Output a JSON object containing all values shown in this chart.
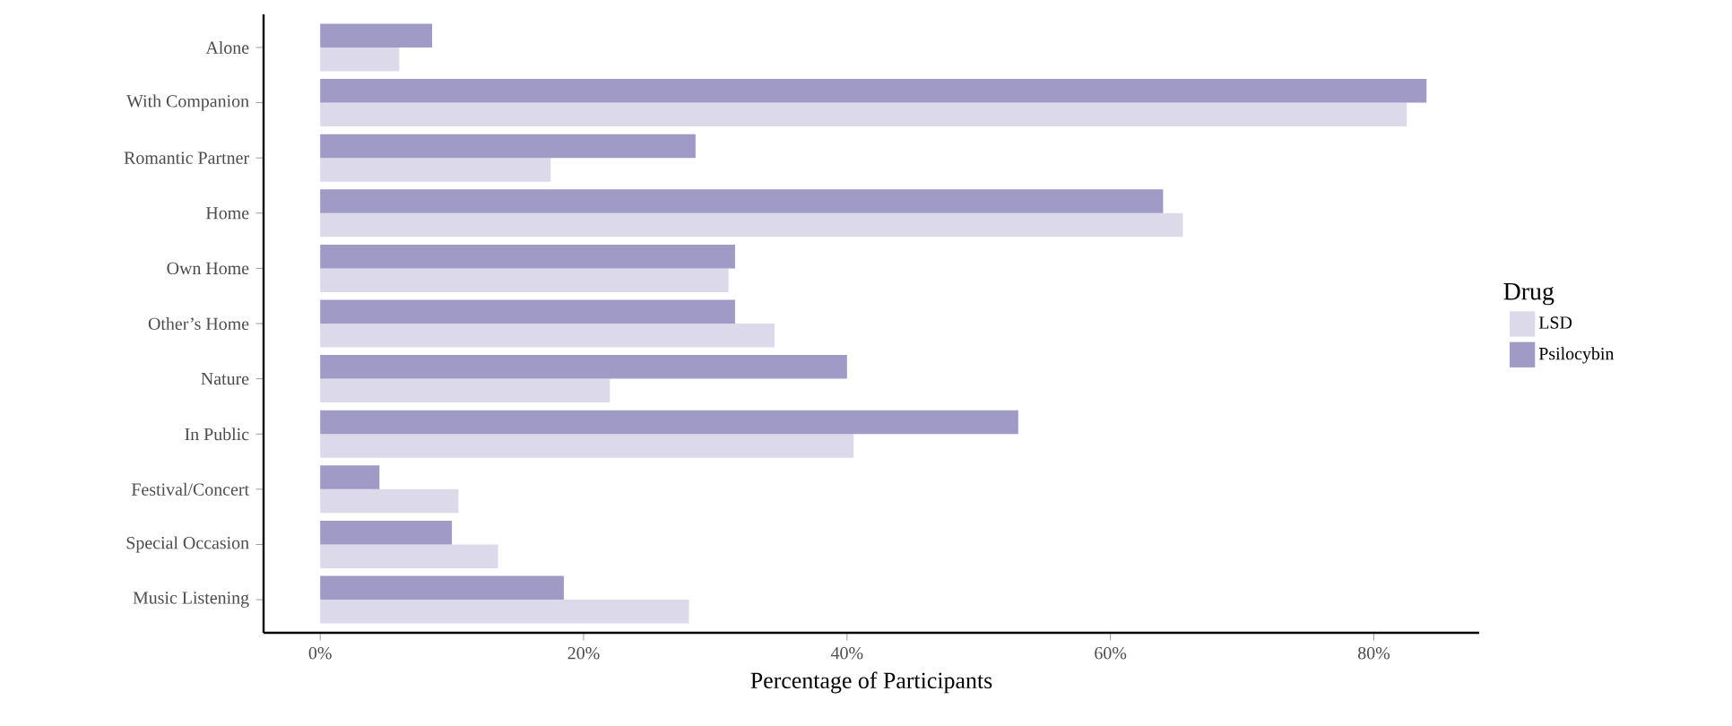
{
  "chart_data": {
    "type": "bar",
    "orientation": "horizontal",
    "categories": [
      "Alone",
      "With Companion",
      "Romantic Partner",
      "Home",
      "Own Home",
      "Other’s Home",
      "Nature",
      "In Public",
      "Festival/Concert",
      "Special Occasion",
      "Music Listening"
    ],
    "series": [
      {
        "name": "LSD",
        "color": "#dcdaea",
        "values": [
          6,
          82.5,
          17.5,
          65.5,
          31,
          34.5,
          22,
          40.5,
          10.5,
          13.5,
          28
        ]
      },
      {
        "name": "Psilocybin",
        "color": "#9f9bc6",
        "values": [
          8.5,
          84,
          28.5,
          64,
          31.5,
          31.5,
          40,
          53,
          4.5,
          10,
          18.5
        ]
      }
    ],
    "xlabel": "Percentage of Participants",
    "legend_title": "Drug",
    "legend": "right",
    "xlim": [
      -4.3,
      88
    ],
    "xticks": [
      {
        "value": 0,
        "label": "0%"
      },
      {
        "value": 20,
        "label": "20%"
      },
      {
        "value": 40,
        "label": "40%"
      },
      {
        "value": 60,
        "label": "60%"
      },
      {
        "value": 80,
        "label": "80%"
      }
    ]
  }
}
